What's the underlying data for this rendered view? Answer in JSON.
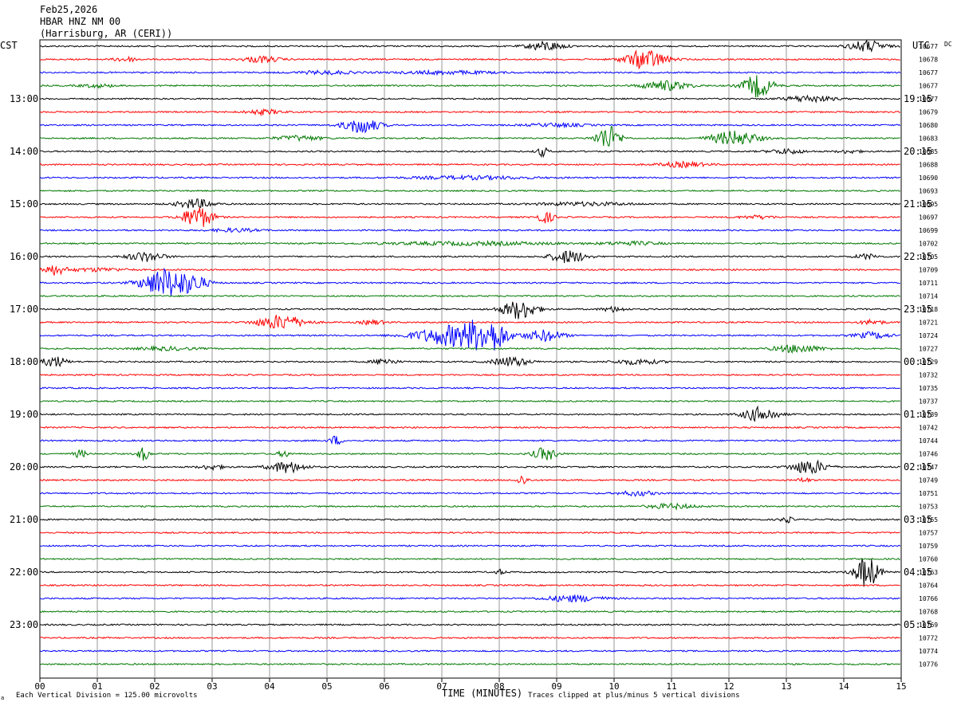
{
  "header": {
    "date": "Feb25,2026",
    "station": "HBAR HNZ NM 00",
    "location": "(Harrisburg, AR (CERI))"
  },
  "chart_data": {
    "type": "line",
    "title": "",
    "left_zone": "CST",
    "right_zone": "UTC",
    "dc_label": "DC",
    "xlabel": "TIME (MINUTES)",
    "x_ticks": [
      "00",
      "01",
      "02",
      "03",
      "04",
      "05",
      "06",
      "07",
      "08",
      "09",
      "10",
      "11",
      "12",
      "13",
      "14",
      "15"
    ],
    "xlim": [
      0,
      15
    ],
    "footer_left": "Each Vertical Division =  125.00 microvolts",
    "footer_right": "Traces clipped at plus/minus 5 vertical divisions",
    "footer_mark": "a",
    "colors": [
      "#000000",
      "#ff0000",
      "#0000ff",
      "#007800"
    ],
    "grid": true,
    "rows": [
      {
        "dc": "10677",
        "cst": "",
        "utc": ""
      },
      {
        "dc": "10678",
        "cst": "",
        "utc": ""
      },
      {
        "dc": "10677",
        "cst": "",
        "utc": ""
      },
      {
        "dc": "10677",
        "cst": "",
        "utc": ""
      },
      {
        "dc": "10677",
        "cst": "13:00",
        "utc": "19:15"
      },
      {
        "dc": "10679",
        "cst": "",
        "utc": ""
      },
      {
        "dc": "10680",
        "cst": "",
        "utc": ""
      },
      {
        "dc": "10683",
        "cst": "",
        "utc": ""
      },
      {
        "dc": "10685",
        "cst": "14:00",
        "utc": "20:15"
      },
      {
        "dc": "10688",
        "cst": "",
        "utc": ""
      },
      {
        "dc": "10690",
        "cst": "",
        "utc": ""
      },
      {
        "dc": "10693",
        "cst": "",
        "utc": ""
      },
      {
        "dc": "10695",
        "cst": "15:00",
        "utc": "21:15"
      },
      {
        "dc": "10697",
        "cst": "",
        "utc": ""
      },
      {
        "dc": "10699",
        "cst": "",
        "utc": ""
      },
      {
        "dc": "10702",
        "cst": "",
        "utc": ""
      },
      {
        "dc": "10705",
        "cst": "16:00",
        "utc": "22:15"
      },
      {
        "dc": "10709",
        "cst": "",
        "utc": ""
      },
      {
        "dc": "10711",
        "cst": "",
        "utc": ""
      },
      {
        "dc": "10714",
        "cst": "",
        "utc": ""
      },
      {
        "dc": "10718",
        "cst": "17:00",
        "utc": "23:15"
      },
      {
        "dc": "10721",
        "cst": "",
        "utc": ""
      },
      {
        "dc": "10724",
        "cst": "",
        "utc": ""
      },
      {
        "dc": "10727",
        "cst": "",
        "utc": ""
      },
      {
        "dc": "10729",
        "cst": "18:00",
        "utc": "00:15"
      },
      {
        "dc": "10732",
        "cst": "",
        "utc": ""
      },
      {
        "dc": "10735",
        "cst": "",
        "utc": ""
      },
      {
        "dc": "10737",
        "cst": "",
        "utc": ""
      },
      {
        "dc": "10739",
        "cst": "19:00",
        "utc": "01:15"
      },
      {
        "dc": "10742",
        "cst": "",
        "utc": ""
      },
      {
        "dc": "10744",
        "cst": "",
        "utc": ""
      },
      {
        "dc": "10746",
        "cst": "",
        "utc": ""
      },
      {
        "dc": "10747",
        "cst": "20:00",
        "utc": "02:15"
      },
      {
        "dc": "10749",
        "cst": "",
        "utc": ""
      },
      {
        "dc": "10751",
        "cst": "",
        "utc": ""
      },
      {
        "dc": "10753",
        "cst": "",
        "utc": ""
      },
      {
        "dc": "10755",
        "cst": "21:00",
        "utc": "03:15"
      },
      {
        "dc": "10757",
        "cst": "",
        "utc": ""
      },
      {
        "dc": "10759",
        "cst": "",
        "utc": ""
      },
      {
        "dc": "10760",
        "cst": "",
        "utc": ""
      },
      {
        "dc": "10763",
        "cst": "22:00",
        "utc": "04:15"
      },
      {
        "dc": "10764",
        "cst": "",
        "utc": ""
      },
      {
        "dc": "10766",
        "cst": "",
        "utc": ""
      },
      {
        "dc": "10768",
        "cst": "",
        "utc": ""
      },
      {
        "dc": "10769",
        "cst": "23:00",
        "utc": "05:15"
      },
      {
        "dc": "10772",
        "cst": "",
        "utc": ""
      },
      {
        "dc": "10774",
        "cst": "",
        "utc": ""
      },
      {
        "dc": "10776",
        "cst": "",
        "utc": ""
      }
    ],
    "events": [
      [
        0,
        8.8,
        6,
        0.3
      ],
      [
        0,
        14.4,
        7,
        0.3
      ],
      [
        1,
        10.55,
        12,
        0.35
      ],
      [
        1,
        3.85,
        4,
        0.3
      ],
      [
        1,
        1.5,
        3,
        0.2
      ],
      [
        2,
        7.1,
        2,
        0.8
      ],
      [
        2,
        5.0,
        2,
        0.5
      ],
      [
        3,
        10.9,
        6,
        0.4
      ],
      [
        3,
        12.5,
        14,
        0.25
      ],
      [
        3,
        1.0,
        2,
        0.3
      ],
      [
        4,
        13.4,
        4,
        0.4
      ],
      [
        5,
        3.9,
        3,
        0.3
      ],
      [
        6,
        5.6,
        10,
        0.3
      ],
      [
        6,
        9.0,
        2,
        0.5
      ],
      [
        7,
        9.9,
        16,
        0.2
      ],
      [
        7,
        12.1,
        9,
        0.4
      ],
      [
        7,
        4.5,
        3,
        0.4
      ],
      [
        8,
        8.75,
        6,
        0.1
      ],
      [
        8,
        13.0,
        3,
        0.3
      ],
      [
        8,
        14.1,
        2,
        0.2
      ],
      [
        9,
        11.2,
        3,
        0.4
      ],
      [
        10,
        7.5,
        2,
        1.0
      ],
      [
        12,
        2.7,
        6,
        0.3
      ],
      [
        12,
        9.5,
        2,
        0.8
      ],
      [
        13,
        2.75,
        14,
        0.25
      ],
      [
        13,
        8.8,
        7,
        0.15
      ],
      [
        13,
        12.5,
        2,
        0.3
      ],
      [
        14,
        3.4,
        2,
        0.4
      ],
      [
        15,
        7.5,
        2,
        1.5
      ],
      [
        15,
        10.3,
        2,
        0.5
      ],
      [
        16,
        1.85,
        6,
        0.3
      ],
      [
        16,
        9.2,
        8,
        0.3
      ],
      [
        16,
        14.4,
        3,
        0.2
      ],
      [
        17,
        0.25,
        6,
        0.2
      ],
      [
        17,
        1.0,
        2,
        0.5
      ],
      [
        18,
        2.2,
        18,
        0.4
      ],
      [
        18,
        2.7,
        7,
        0.25
      ],
      [
        20,
        8.35,
        12,
        0.3
      ],
      [
        20,
        10.0,
        3,
        0.2
      ],
      [
        21,
        4.2,
        9,
        0.4
      ],
      [
        21,
        5.8,
        3,
        0.2
      ],
      [
        21,
        14.5,
        3,
        0.2
      ],
      [
        22,
        7.3,
        14,
        0.7
      ],
      [
        22,
        7.8,
        25,
        0.25
      ],
      [
        22,
        8.8,
        7,
        0.3
      ],
      [
        22,
        14.5,
        4,
        0.3
      ],
      [
        23,
        13.2,
        5,
        0.4
      ],
      [
        23,
        2.2,
        2,
        0.5
      ],
      [
        24,
        0.25,
        7,
        0.2
      ],
      [
        24,
        6.0,
        4,
        0.2
      ],
      [
        24,
        8.2,
        6,
        0.3
      ],
      [
        24,
        10.4,
        3,
        0.4
      ],
      [
        28,
        12.55,
        9,
        0.3
      ],
      [
        30,
        5.15,
        6,
        0.1
      ],
      [
        31,
        0.7,
        5,
        0.1
      ],
      [
        31,
        1.8,
        8,
        0.1
      ],
      [
        31,
        8.8,
        8,
        0.2
      ],
      [
        31,
        4.25,
        4,
        0.1
      ],
      [
        32,
        4.3,
        7,
        0.3
      ],
      [
        32,
        13.4,
        9,
        0.3
      ],
      [
        32,
        3.0,
        3,
        0.2
      ],
      [
        33,
        8.4,
        6,
        0.1
      ],
      [
        33,
        13.3,
        3,
        0.1
      ],
      [
        34,
        10.4,
        3,
        0.3
      ],
      [
        35,
        11.0,
        3,
        0.4
      ],
      [
        36,
        13.0,
        4,
        0.1
      ],
      [
        40,
        14.4,
        20,
        0.2
      ],
      [
        40,
        8.0,
        3,
        0.1
      ],
      [
        42,
        9.3,
        4,
        0.5
      ]
    ]
  }
}
